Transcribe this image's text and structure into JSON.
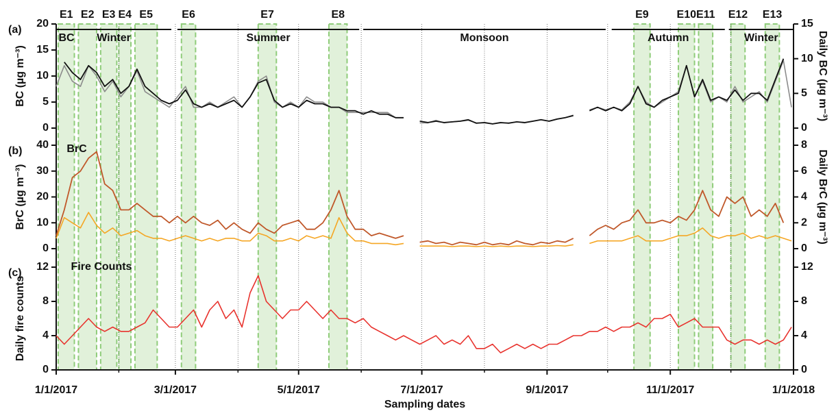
{
  "chart_data": {
    "type": "line",
    "xlabel": "Sampling dates",
    "xlim": [
      "1/1/2017",
      "1/1/2018"
    ],
    "xticks": [
      "1/1/2017",
      "3/1/2017",
      "5/1/2017",
      "7/1/2017",
      "9/1/2017",
      "11/1/2017",
      "1/1/2018"
    ],
    "xminorticks": [
      "2/1/2017",
      "4/1/2017",
      "6/1/2017",
      "8/1/2017",
      "10/1/2017",
      "12/1/2017"
    ],
    "episodes": [
      {
        "label": "E1",
        "start": "1/2/2017",
        "end": "1/10/2017"
      },
      {
        "label": "E2",
        "start": "1/12/2017",
        "end": "1/21/2017"
      },
      {
        "label": "E3",
        "start": "1/23/2017",
        "end": "1/31/2017"
      },
      {
        "label": "E4",
        "start": "2/1/2017",
        "end": "2/7/2017"
      },
      {
        "label": "E5",
        "start": "2/9/2017",
        "end": "2/20/2017"
      },
      {
        "label": "E6",
        "start": "3/4/2017",
        "end": "3/11/2017"
      },
      {
        "label": "E7",
        "start": "4/11/2017",
        "end": "4/20/2017"
      },
      {
        "label": "E8",
        "start": "5/16/2017",
        "end": "5/25/2017"
      },
      {
        "label": "E9",
        "start": "10/14/2017",
        "end": "10/22/2017"
      },
      {
        "label": "E10",
        "start": "11/5/2017",
        "end": "11/13/2017"
      },
      {
        "label": "E11",
        "start": "11/15/2017",
        "end": "11/22/2017"
      },
      {
        "label": "E12",
        "start": "12/1/2017",
        "end": "12/8/2017"
      },
      {
        "label": "E13",
        "start": "12/18/2017",
        "end": "12/25/2017"
      }
    ],
    "seasons": [
      {
        "label": "Winter",
        "start": "1/1/2017",
        "end": "2/27/2017"
      },
      {
        "label": "Summer",
        "start": "3/2/2017",
        "end": "5/31/2017"
      },
      {
        "label": "Monsoon",
        "start": "6/2/2017",
        "end": "9/30/2017"
      },
      {
        "label": "Autumn",
        "start": "10/3/2017",
        "end": "11/28/2017"
      },
      {
        "label": "Winter",
        "start": "11/30/2017",
        "end": "1/1/2018"
      }
    ],
    "x": [
      "1/1/2017",
      "1/5/2017",
      "1/9/2017",
      "1/13/2017",
      "1/17/2017",
      "1/21/2017",
      "1/25/2017",
      "1/29/2017",
      "2/2/2017",
      "2/6/2017",
      "2/10/2017",
      "2/14/2017",
      "2/18/2017",
      "2/22/2017",
      "2/26/2017",
      "3/2/2017",
      "3/6/2017",
      "3/10/2017",
      "3/14/2017",
      "3/18/2017",
      "3/22/2017",
      "3/26/2017",
      "3/30/2017",
      "4/3/2017",
      "4/7/2017",
      "4/11/2017",
      "4/15/2017",
      "4/19/2017",
      "4/23/2017",
      "4/27/2017",
      "5/1/2017",
      "5/5/2017",
      "5/9/2017",
      "5/13/2017",
      "5/17/2017",
      "5/21/2017",
      "5/25/2017",
      "5/29/2017",
      "6/2/2017",
      "6/6/2017",
      "6/10/2017",
      "6/14/2017",
      "6/18/2017",
      "6/22/2017",
      "6/26/2017",
      "6/30/2017",
      "7/4/2017",
      "7/8/2017",
      "7/12/2017",
      "7/16/2017",
      "7/20/2017",
      "7/24/2017",
      "7/28/2017",
      "8/1/2017",
      "8/5/2017",
      "8/9/2017",
      "8/13/2017",
      "8/17/2017",
      "8/21/2017",
      "8/25/2017",
      "8/29/2017",
      "9/2/2017",
      "9/6/2017",
      "9/10/2017",
      "9/14/2017",
      "9/18/2017",
      "9/22/2017",
      "9/26/2017",
      "9/30/2017",
      "10/4/2017",
      "10/8/2017",
      "10/12/2017",
      "10/16/2017",
      "10/20/2017",
      "10/24/2017",
      "10/28/2017",
      "11/1/2017",
      "11/5/2017",
      "11/9/2017",
      "11/13/2017",
      "11/17/2017",
      "11/21/2017",
      "11/25/2017",
      "11/29/2017",
      "12/3/2017",
      "12/7/2017",
      "12/11/2017",
      "12/15/2017",
      "12/19/2017",
      "12/23/2017",
      "12/27/2017",
      "12/31/2017"
    ],
    "panels": [
      {
        "label": "(a)",
        "ylabel": "BC (µg m⁻³)",
        "y2label": "Daily BC (µg m⁻³)",
        "ylim": [
          0,
          20
        ],
        "yticks": [
          0,
          5,
          10,
          15,
          20
        ],
        "y2lim": [
          0,
          15
        ],
        "y2ticks": [
          0,
          5,
          10,
          15
        ],
        "series": [
          {
            "name": "BC",
            "color": "#8c8c8c",
            "values": [
              8,
              12,
              9,
              8,
              12,
              10,
              7,
              9,
              6,
              8,
              11,
              7,
              6,
              5,
              4,
              6,
              8,
              4,
              4,
              5,
              4,
              5,
              6,
              4,
              6,
              9,
              10,
              5,
              4,
              5,
              4,
              6,
              5,
              5,
              4,
              4,
              3,
              3,
              3,
              3,
              3,
              3,
              2,
              2,
              null,
              1,
              1,
              1.5,
              1,
              1.2,
              1.3,
              1.5,
              1,
              1,
              0.8,
              1,
              1,
              1.2,
              1,
              1.3,
              1.6,
              1.3,
              1.7,
              2,
              2.5,
              null,
              3.5,
              4,
              3.5,
              4,
              3.5,
              5,
              8,
              5,
              4,
              5,
              6,
              7,
              12,
              6,
              9,
              5,
              6,
              5,
              8,
              5,
              6,
              7,
              5,
              9,
              13,
              4
            ]
          },
          {
            "color": "#111111",
            "axis": "y2",
            "values": [
              null,
              9.5,
              8,
              7,
              9,
              8,
              6,
              7,
              5,
              6,
              8.5,
              6,
              5,
              4,
              3.5,
              4,
              5.5,
              3.5,
              3,
              3.5,
              3,
              3.5,
              4,
              3,
              4.5,
              6.5,
              7,
              4,
              3,
              3.5,
              3,
              4,
              3.5,
              3.5,
              3,
              3,
              2.5,
              2.5,
              2,
              2.5,
              2,
              2,
              1.5,
              1.5,
              null,
              1,
              0.8,
              1,
              0.8,
              0.9,
              1,
              1.2,
              0.7,
              0.8,
              0.6,
              0.8,
              0.7,
              0.9,
              0.8,
              1,
              1.2,
              1,
              1.3,
              1.5,
              1.8,
              null,
              2.5,
              3,
              2.5,
              3,
              2.5,
              3.5,
              6,
              3.5,
              3,
              4,
              4.5,
              5,
              9,
              4.5,
              7,
              4,
              4.5,
              4,
              5.5,
              4,
              5,
              5,
              4,
              7,
              10,
              null
            ]
          }
        ]
      },
      {
        "label": "(b)",
        "ylabel": "BrC (µg m⁻³)",
        "y2label": "Daily BrC (µg m⁻³)",
        "ylim": [
          0,
          40
        ],
        "yticks": [
          0,
          10,
          20,
          30,
          40
        ],
        "y2lim": [
          0,
          8
        ],
        "y2ticks": [
          0,
          2,
          4,
          6,
          8
        ],
        "series": [
          {
            "color": "#f5a623",
            "values": [
              4,
              12,
              10,
              8,
              14,
              9,
              6,
              8,
              5,
              6,
              7,
              5,
              4,
              4,
              3,
              4,
              5,
              4,
              3,
              4,
              3,
              4,
              4,
              3,
              3,
              6,
              5,
              3,
              3,
              4,
              3,
              5,
              4,
              5,
              4,
              12,
              6,
              3,
              3,
              2,
              2,
              2,
              1.5,
              2,
              null,
              1,
              1,
              1,
              1,
              0.8,
              1,
              1,
              0.8,
              1,
              0.8,
              1,
              0.8,
              1,
              1,
              0.8,
              1,
              1,
              1.2,
              1,
              1.5,
              null,
              2,
              3,
              3,
              3,
              3,
              4,
              5,
              3,
              3,
              3,
              4,
              5,
              5,
              6,
              8,
              5,
              4,
              5,
              5,
              6,
              4,
              5,
              4,
              5,
              4,
              3
            ]
          },
          {
            "name": "BrC",
            "color": "#c0582a",
            "axis": "y2",
            "values": [
              1,
              3,
              5.5,
              6,
              7,
              7.5,
              5,
              4.5,
              3,
              3,
              3.5,
              3,
              2.5,
              2.5,
              2,
              2.5,
              2,
              2.5,
              2,
              1.8,
              2.2,
              1.5,
              2,
              1.5,
              1.2,
              2,
              1.5,
              1.2,
              1.8,
              2,
              2.2,
              1.5,
              1.5,
              2,
              3,
              4.5,
              2.5,
              1.5,
              1.5,
              1,
              1.2,
              1,
              0.8,
              1,
              null,
              0.5,
              0.6,
              0.4,
              0.5,
              0.3,
              0.5,
              0.4,
              0.3,
              0.5,
              0.3,
              0.4,
              0.3,
              0.6,
              0.4,
              0.3,
              0.5,
              0.4,
              0.6,
              0.5,
              0.8,
              null,
              1,
              1.5,
              1.8,
              1.5,
              2,
              2.2,
              3,
              2,
              2,
              2.2,
              2,
              2.5,
              2.2,
              3,
              4.5,
              3,
              2.5,
              4,
              3.5,
              4,
              2.5,
              3,
              2.5,
              3.5,
              2,
              null
            ]
          }
        ]
      },
      {
        "label": "(c)",
        "ylabel": "Daily fire counts",
        "ylim": [
          0,
          12
        ],
        "yticks": [
          0,
          4,
          8,
          12
        ],
        "y2lim": [
          0,
          12
        ],
        "y2ticks": [
          0,
          4,
          8,
          12
        ],
        "series": [
          {
            "name": "Fire Counts",
            "color": "#e8322d",
            "values": [
              4,
              3,
              4,
              5,
              6,
              5,
              4.5,
              5,
              4.5,
              4.5,
              5,
              5.5,
              7,
              6,
              5,
              5,
              6,
              7,
              5,
              7,
              8,
              6,
              7,
              5,
              9,
              11,
              8,
              7,
              6,
              7,
              7,
              8,
              7,
              6,
              7,
              6,
              6,
              5.5,
              6,
              5,
              4.5,
              4,
              3.5,
              4,
              3.5,
              3,
              3.5,
              4,
              3,
              3.5,
              3,
              4,
              2.5,
              2.5,
              3,
              2,
              2.5,
              3,
              2.5,
              3,
              2.5,
              3,
              3,
              3.5,
              4,
              4,
              4.5,
              4.5,
              5,
              4.5,
              5,
              5,
              5.5,
              5,
              6,
              6,
              6.5,
              5,
              5.5,
              6,
              5,
              5,
              5,
              3.5,
              3,
              3.5,
              3.5,
              3,
              3.5,
              3,
              3.5,
              5
            ]
          }
        ]
      }
    ]
  }
}
